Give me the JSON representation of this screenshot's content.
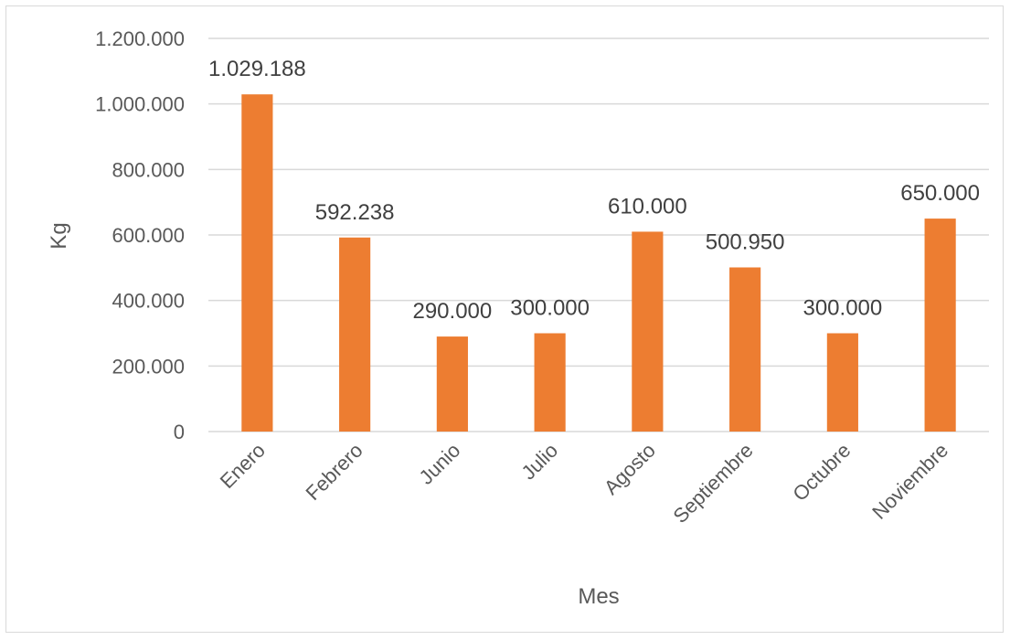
{
  "chart_data": {
    "type": "bar",
    "title": "",
    "xlabel": "Mes",
    "ylabel": "Kg",
    "categories": [
      "Enero",
      "Febrero",
      "Junio",
      "Julio",
      "Agosto",
      "Septiembre",
      "Octubre",
      "Noviembre"
    ],
    "values": [
      1029188,
      592238,
      290000,
      300000,
      610000,
      500950,
      300000,
      650000
    ],
    "data_labels": [
      "1.029.188",
      "592.238",
      "290.000",
      "300.000",
      "610.000",
      "500.950",
      "300.000",
      "650.000"
    ],
    "ylim": [
      0,
      1200000
    ],
    "yticks": [
      0,
      200000,
      400000,
      600000,
      800000,
      1000000,
      1200000
    ],
    "ytick_labels": [
      "0",
      "200.000",
      "400.000",
      "600.000",
      "800.000",
      "1.000.000",
      "1.200.000"
    ],
    "grid": true,
    "legend": "none",
    "bar_color": "#ED7D31",
    "grid_color": "#d9d9d9"
  }
}
